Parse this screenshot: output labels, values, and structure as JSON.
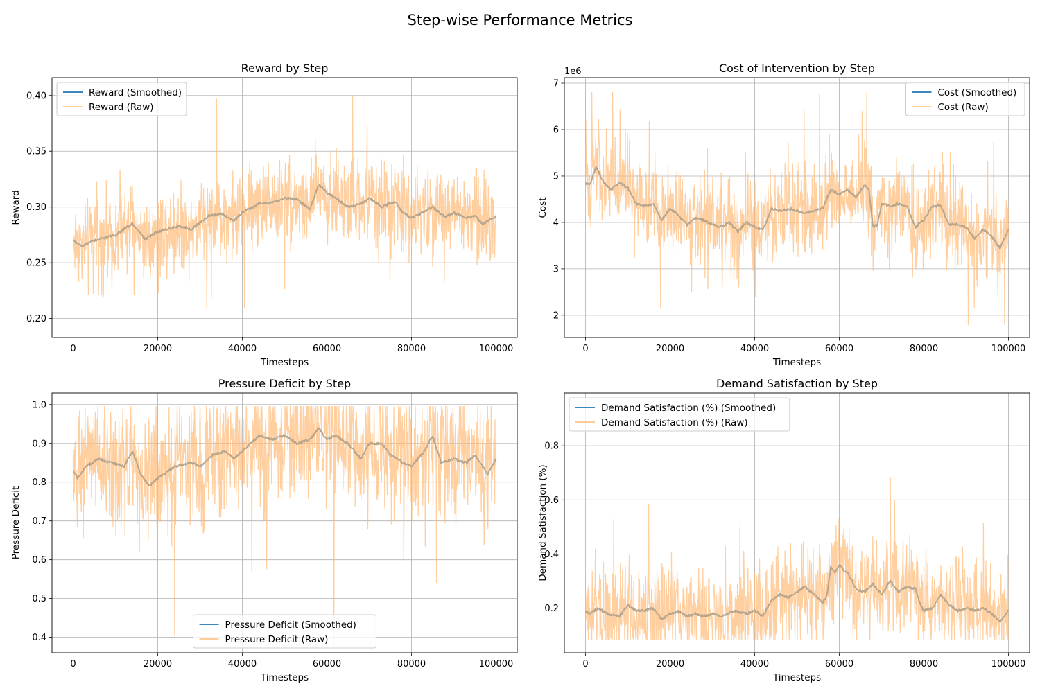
{
  "figure": {
    "title": "Step-wise Performance Metrics"
  },
  "colors": {
    "smoothed": "#1f77b4",
    "raw": "#ffbb78",
    "grid": "#b0b0b0"
  },
  "chart_data": [
    {
      "type": "line",
      "title": "Reward by Step",
      "xlabel": "Timesteps",
      "ylabel": "Reward",
      "multiplier": "",
      "xlim": [
        -5000,
        105000
      ],
      "ylim": [
        0.183,
        0.416
      ],
      "xticks": [
        0,
        20000,
        40000,
        60000,
        80000,
        100000
      ],
      "yticks": [
        0.2,
        0.25,
        0.3,
        0.35,
        0.4
      ],
      "ytick_labels": [
        "0.20",
        "0.25",
        "0.30",
        "0.35",
        "0.40"
      ],
      "grid": true,
      "legend_loc": "upper-left",
      "raw_band": {
        "lo": 0.21,
        "hi": 0.4,
        "sigma": 0.022
      },
      "series": [
        {
          "name": "Reward (Smoothed)",
          "style": "smoothed",
          "x": [
            0,
            2000,
            5000,
            8000,
            10000,
            14000,
            17000,
            20000,
            25000,
            28000,
            32000,
            35000,
            38000,
            40000,
            44000,
            47000,
            50000,
            53000,
            56000,
            58000,
            60000,
            62000,
            65000,
            68000,
            70000,
            73000,
            76000,
            78000,
            80000,
            83000,
            85000,
            88000,
            90000,
            93000,
            95000,
            97000,
            98000,
            100000
          ],
          "y": [
            0.27,
            0.265,
            0.27,
            0.273,
            0.275,
            0.285,
            0.271,
            0.278,
            0.283,
            0.28,
            0.292,
            0.294,
            0.288,
            0.295,
            0.303,
            0.304,
            0.308,
            0.307,
            0.298,
            0.32,
            0.313,
            0.308,
            0.3,
            0.303,
            0.308,
            0.3,
            0.305,
            0.295,
            0.29,
            0.296,
            0.3,
            0.291,
            0.295,
            0.29,
            0.292,
            0.284,
            0.288,
            0.291
          ]
        },
        {
          "name": "Reward (Raw)",
          "style": "raw"
        }
      ]
    },
    {
      "type": "line",
      "title": "Cost of Intervention by Step",
      "xlabel": "Timesteps",
      "ylabel": "Cost",
      "multiplier": "1e6",
      "xlim": [
        -5000,
        105000
      ],
      "ylim": [
        1.52,
        7.12
      ],
      "xticks": [
        0,
        20000,
        40000,
        60000,
        80000,
        100000
      ],
      "yticks": [
        2,
        3,
        4,
        5,
        6,
        7
      ],
      "ytick_labels": [
        "2",
        "3",
        "4",
        "5",
        "6",
        "7"
      ],
      "grid": true,
      "legend_loc": "upper-right",
      "raw_band": {
        "lo": 1.8,
        "hi": 6.8,
        "sigma": 0.55
      },
      "series": [
        {
          "name": "Cost (Smoothed)",
          "style": "smoothed",
          "x": [
            0,
            1000,
            2500,
            4000,
            6000,
            8000,
            10000,
            12000,
            14000,
            16000,
            18000,
            20000,
            22000,
            24000,
            26000,
            28000,
            30000,
            32000,
            34000,
            36000,
            38000,
            40000,
            42000,
            44000,
            46000,
            48000,
            50000,
            52000,
            54000,
            56000,
            58000,
            60000,
            62000,
            64000,
            66000,
            67000,
            68000,
            69000,
            70000,
            72000,
            74000,
            76000,
            78000,
            80000,
            82000,
            84000,
            86000,
            88000,
            90000,
            92000,
            94000,
            96000,
            98000,
            100000
          ],
          "y": [
            4.85,
            4.8,
            5.2,
            4.9,
            4.7,
            4.85,
            4.75,
            4.4,
            4.35,
            4.4,
            4.05,
            4.3,
            4.15,
            3.95,
            4.1,
            4.05,
            3.95,
            3.9,
            4.0,
            3.8,
            4.0,
            3.9,
            3.85,
            4.3,
            4.25,
            4.3,
            4.25,
            4.2,
            4.25,
            4.3,
            4.7,
            4.6,
            4.7,
            4.55,
            4.8,
            4.7,
            3.9,
            3.95,
            4.4,
            4.35,
            4.4,
            4.35,
            3.9,
            4.05,
            4.35,
            4.35,
            3.95,
            3.95,
            3.9,
            3.65,
            3.85,
            3.7,
            3.45,
            3.85
          ]
        },
        {
          "name": "Cost (Raw)",
          "style": "raw"
        }
      ]
    },
    {
      "type": "line",
      "title": "Pressure Deficit by Step",
      "xlabel": "Timesteps",
      "ylabel": "Pressure Deficit",
      "multiplier": "",
      "xlim": [
        -5000,
        105000
      ],
      "ylim": [
        0.36,
        1.03
      ],
      "xticks": [
        0,
        20000,
        40000,
        60000,
        80000,
        100000
      ],
      "yticks": [
        0.4,
        0.5,
        0.6,
        0.7,
        0.8,
        0.9,
        1.0
      ],
      "ytick_labels": [
        "0.4",
        "0.5",
        "0.6",
        "0.7",
        "0.8",
        "0.9",
        "1.0"
      ],
      "grid": true,
      "legend_loc": "lower-center",
      "raw_band": {
        "lo": 0.38,
        "hi": 0.995,
        "sigma": 0.09
      },
      "series": [
        {
          "name": "Pressure Deficit (Smoothed)",
          "style": "smoothed",
          "x": [
            0,
            1000,
            3000,
            6000,
            9000,
            12000,
            14000,
            16000,
            18000,
            20000,
            24000,
            28000,
            30000,
            33000,
            36000,
            38000,
            40000,
            44000,
            47000,
            50000,
            53000,
            56000,
            58000,
            60000,
            62000,
            65000,
            68000,
            70000,
            73000,
            75000,
            78000,
            80000,
            83000,
            85000,
            87000,
            90000,
            93000,
            95000,
            98000,
            100000
          ],
          "y": [
            0.83,
            0.81,
            0.84,
            0.86,
            0.85,
            0.84,
            0.88,
            0.82,
            0.79,
            0.81,
            0.84,
            0.85,
            0.84,
            0.87,
            0.88,
            0.86,
            0.88,
            0.92,
            0.91,
            0.92,
            0.9,
            0.91,
            0.94,
            0.91,
            0.92,
            0.9,
            0.86,
            0.9,
            0.9,
            0.87,
            0.85,
            0.84,
            0.88,
            0.92,
            0.85,
            0.86,
            0.85,
            0.87,
            0.82,
            0.86
          ]
        },
        {
          "name": "Pressure Deficit (Raw)",
          "style": "raw"
        }
      ]
    },
    {
      "type": "line",
      "title": "Demand Satisfaction by Step",
      "xlabel": "Timesteps",
      "ylabel": "Demand Satisfaction (%)",
      "multiplier": "",
      "xlim": [
        -5000,
        105000
      ],
      "ylim": [
        0.035,
        0.995
      ],
      "xticks": [
        0,
        20000,
        40000,
        60000,
        80000,
        100000
      ],
      "yticks": [
        0.2,
        0.4,
        0.6,
        0.8
      ],
      "ytick_labels": [
        "0.2",
        "0.4",
        "0.6",
        "0.8"
      ],
      "grid": true,
      "legend_loc": "upper-left",
      "raw_band": {
        "lo": 0.085,
        "hi": 0.95,
        "sigma": 0.1
      },
      "series": [
        {
          "name": "Demand Satisfaction (%) (Smoothed)",
          "style": "smoothed",
          "x": [
            0,
            1000,
            3000,
            5000,
            8000,
            10000,
            12000,
            14000,
            16000,
            18000,
            20000,
            22000,
            24000,
            26000,
            28000,
            30000,
            32000,
            35000,
            38000,
            40000,
            42000,
            44000,
            46000,
            48000,
            50000,
            52000,
            54000,
            56000,
            57000,
            58000,
            59000,
            60000,
            61000,
            62000,
            64000,
            66000,
            68000,
            70000,
            72000,
            74000,
            76000,
            78000,
            79000,
            80000,
            82000,
            84000,
            86000,
            88000,
            90000,
            92000,
            94000,
            96000,
            98000,
            100000
          ],
          "y": [
            0.19,
            0.18,
            0.2,
            0.18,
            0.17,
            0.21,
            0.19,
            0.19,
            0.2,
            0.16,
            0.18,
            0.19,
            0.17,
            0.18,
            0.17,
            0.18,
            0.17,
            0.19,
            0.18,
            0.19,
            0.17,
            0.23,
            0.25,
            0.24,
            0.26,
            0.28,
            0.25,
            0.22,
            0.24,
            0.35,
            0.33,
            0.36,
            0.34,
            0.33,
            0.27,
            0.26,
            0.29,
            0.25,
            0.3,
            0.26,
            0.28,
            0.27,
            0.22,
            0.19,
            0.2,
            0.25,
            0.21,
            0.19,
            0.2,
            0.19,
            0.2,
            0.18,
            0.15,
            0.19
          ]
        },
        {
          "name": "Demand Satisfaction (%) (Raw)",
          "style": "raw"
        }
      ]
    }
  ]
}
